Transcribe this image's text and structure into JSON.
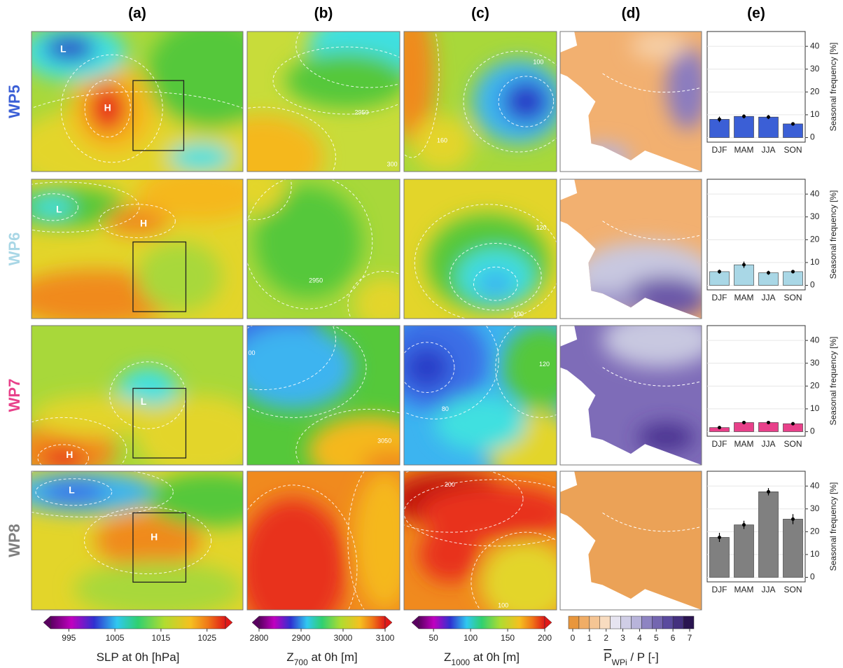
{
  "columns": [
    "(a)",
    "(b)",
    "(c)",
    "(d)",
    "(e)"
  ],
  "rows": [
    {
      "name": "WP5",
      "color": "#3b5fd6",
      "a": [
        "L",
        "H"
      ],
      "b": [
        "2950",
        "300"
      ],
      "c": [
        "100",
        "160"
      ]
    },
    {
      "name": "WP6",
      "color": "#a9d7e6",
      "a": [
        "L",
        "H"
      ],
      "b": [
        "2950"
      ],
      "c": [
        "120",
        "100"
      ]
    },
    {
      "name": "WP7",
      "color": "#e8408a",
      "a": [
        "L",
        "H"
      ],
      "b": [
        "00",
        "3050"
      ],
      "c": [
        "80",
        "120"
      ]
    },
    {
      "name": "WP8",
      "color": "#7f7f7f",
      "a": [
        "L",
        "H"
      ],
      "c": [
        "200",
        "100"
      ]
    }
  ],
  "colorbars": [
    {
      "label": [
        "SLP at 0h [hPa]"
      ],
      "ticks": [
        995,
        1005,
        1015,
        1025
      ],
      "range": [
        991,
        1029
      ]
    },
    {
      "label": [
        "Z",
        "700",
        " at 0h [m]"
      ],
      "ticks": [
        2800,
        2900,
        3000,
        3100
      ],
      "range": [
        2800,
        3100
      ]
    },
    {
      "label": [
        "Z",
        "1000",
        " at 0h [m]"
      ],
      "ticks": [
        50,
        100,
        150,
        200
      ],
      "range": [
        30,
        200
      ]
    },
    {
      "label": [
        "P",
        "WPi",
        " / P [-]"
      ],
      "ticks": [
        0,
        1,
        2,
        3,
        4,
        5,
        6,
        7
      ],
      "range": [
        0,
        7
      ]
    }
  ],
  "chart_data": [
    {
      "type": "bar",
      "categories": [
        "DJF",
        "MAM",
        "JJA",
        "SON"
      ],
      "values": [
        8,
        9.3,
        9,
        6
      ],
      "errors": [
        1.2,
        0.9,
        0.9,
        0.8
      ],
      "color": "#3b5fd6",
      "ylabel": "Seasonal frequency [%]",
      "ylim": [
        -2,
        46.5
      ],
      "yticks": [
        0,
        10,
        20,
        30,
        40
      ],
      "grid": true
    },
    {
      "type": "bar",
      "categories": [
        "DJF",
        "MAM",
        "JJA",
        "SON"
      ],
      "values": [
        6,
        9,
        5.5,
        6
      ],
      "errors": [
        0.9,
        1.4,
        0.9,
        0.8
      ],
      "color": "#a9d7e6",
      "ylabel": "Seasonal frequency [%]",
      "ylim": [
        -2,
        46.5
      ],
      "yticks": [
        0,
        10,
        20,
        30,
        40
      ],
      "grid": true
    },
    {
      "type": "bar",
      "categories": [
        "DJF",
        "MAM",
        "JJA",
        "SON"
      ],
      "values": [
        1.8,
        4,
        4,
        3.5
      ],
      "errors": [
        0.4,
        0.6,
        0.5,
        0.5
      ],
      "color": "#e8408a",
      "ylabel": "Seasonal frequency [%]",
      "ylim": [
        -2,
        46.5
      ],
      "yticks": [
        0,
        10,
        20,
        30,
        40
      ],
      "grid": true
    },
    {
      "type": "bar",
      "categories": [
        "DJF",
        "MAM",
        "JJA",
        "SON"
      ],
      "values": [
        17.5,
        23,
        37.5,
        25.5
      ],
      "errors": [
        2,
        1.8,
        1.6,
        2.2
      ],
      "color": "#808080",
      "ylabel": "Seasonal frequency [%]",
      "ylim": [
        -2,
        46.5
      ],
      "yticks": [
        0,
        10,
        20,
        30,
        40
      ],
      "grid": true
    }
  ]
}
